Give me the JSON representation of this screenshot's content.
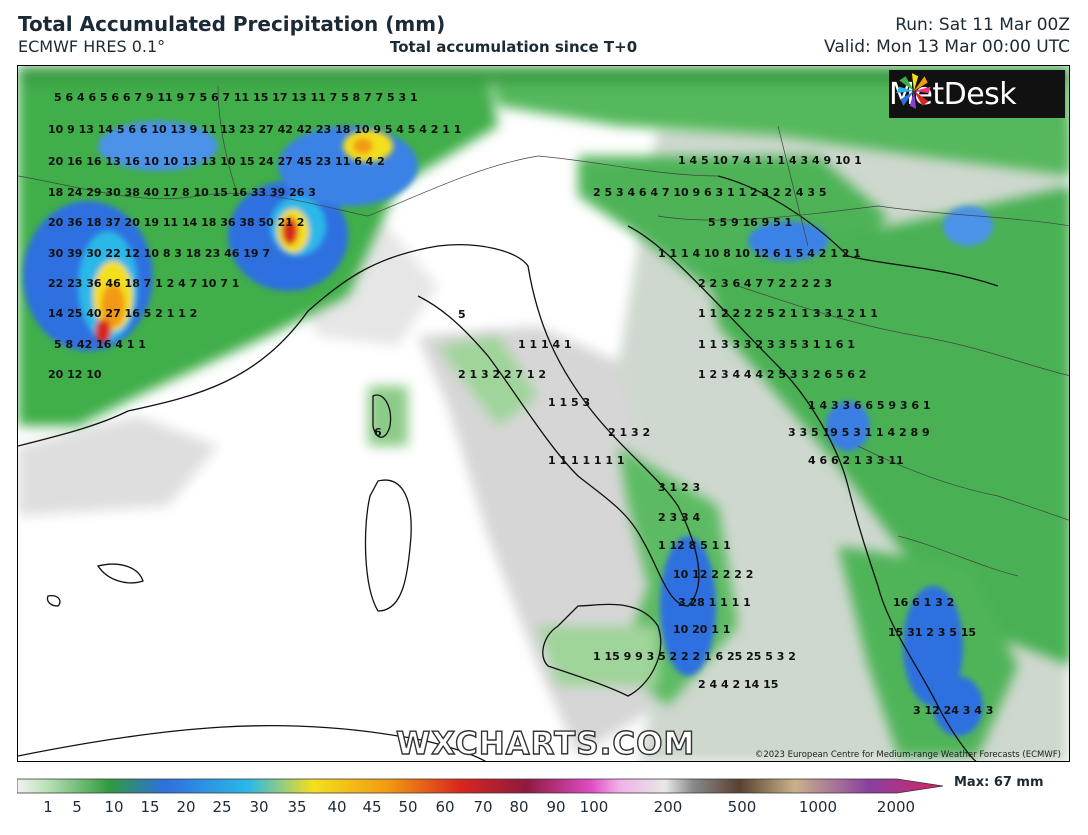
{
  "header": {
    "title": "Total Accumulated Precipitation (mm)",
    "subtitle": "ECMWF HRES 0.1°",
    "center_subtitle": "Total accumulation since T+0",
    "run": "Run: Sat 11 Mar 00Z",
    "valid": "Valid: Mon 13 Mar 00:00 UTC"
  },
  "logo": {
    "text": "MetDesk",
    "icon": "metdesk-star-icon"
  },
  "watermark": "WXCHARTS.COM",
  "copyright": "©2023 European Centre for Medium-range Weather Forecasts (ECMWF)",
  "colorbar": {
    "max_label": "Max: 67 mm",
    "ticks": [
      "1",
      "5",
      "10",
      "15",
      "20",
      "25",
      "30",
      "35",
      "40",
      "45",
      "50",
      "60",
      "70",
      "80",
      "90",
      "100",
      "200",
      "500",
      "1000",
      "2000"
    ]
  },
  "colors": {
    "green_light": "#9fd49a",
    "green": "#3fae4a",
    "green_dark": "#1f8a34",
    "blue": "#2f6fe0",
    "cyan": "#2bb8e8",
    "yellow": "#f4df1e",
    "orange": "#f29a12",
    "red": "#d7261e",
    "grey": "#cfcfcf"
  }
}
